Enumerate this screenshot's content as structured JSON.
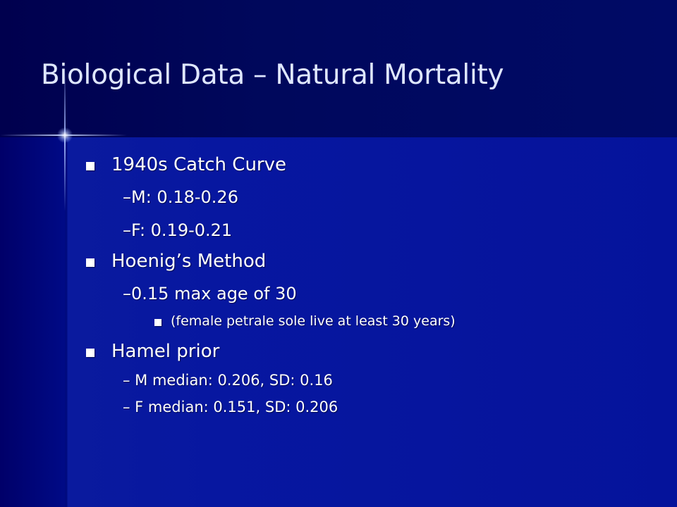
{
  "slide": {
    "title": "Biological Data – Natural Mortality",
    "items": [
      {
        "level": 1,
        "text": "1940s Catch Curve"
      },
      {
        "level": 2,
        "text": "–M: 0.18-0.26"
      },
      {
        "level": 2,
        "text": "–F: 0.19-0.21"
      },
      {
        "level": 1,
        "text": "Hoenig’s Method"
      },
      {
        "level": 2,
        "text": "–0.15 max age of 30"
      },
      {
        "level": 3,
        "text": "(female petrale sole live at least 30 years)"
      },
      {
        "level": 1,
        "text": "Hamel prior"
      },
      {
        "level": 2,
        "text": "–  M median: 0.206, SD: 0.16"
      },
      {
        "level": 2,
        "text": "–  F median: 0.151, SD: 0.206"
      }
    ]
  },
  "colors": {
    "background": "#05139b",
    "title": "#dfe7ff",
    "text": "#ffffff",
    "bullet": "#ffffff"
  }
}
